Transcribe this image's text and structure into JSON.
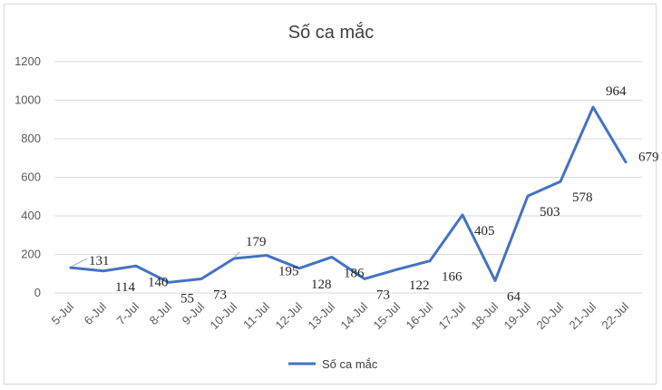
{
  "chart_data": {
    "type": "line",
    "title": "Số ca mắc",
    "categories": [
      "5-Jul",
      "6-Jul",
      "7-Jul",
      "8-Jul",
      "9-Jul",
      "10-Jul",
      "11-Jul",
      "12-Jul",
      "13-Jul",
      "14-Jul",
      "15-Jul",
      "16-Jul",
      "17-Jul",
      "18-Jul",
      "19-Jul",
      "20-Jul",
      "21-Jul",
      "22-Jul"
    ],
    "series": [
      {
        "name": "Số ca mắc",
        "color": "#4472c4",
        "values": [
          131,
          114,
          140,
          55,
          73,
          179,
          195,
          128,
          186,
          73,
          122,
          166,
          405,
          64,
          503,
          578,
          964,
          679
        ]
      }
    ],
    "data_labels": [
      "131",
      "114",
      "140",
      "55",
      "73",
      "179",
      "195",
      "128",
      "186",
      "73",
      "122",
      "166",
      "405",
      "64",
      "503",
      "578",
      "964",
      "679"
    ],
    "ylim": [
      0,
      1200
    ],
    "yticks": [
      "0",
      "200",
      "400",
      "600",
      "800",
      "1000",
      "1200"
    ],
    "grid": true,
    "legend_position": "bottom",
    "xlabel": "",
    "ylabel": ""
  }
}
